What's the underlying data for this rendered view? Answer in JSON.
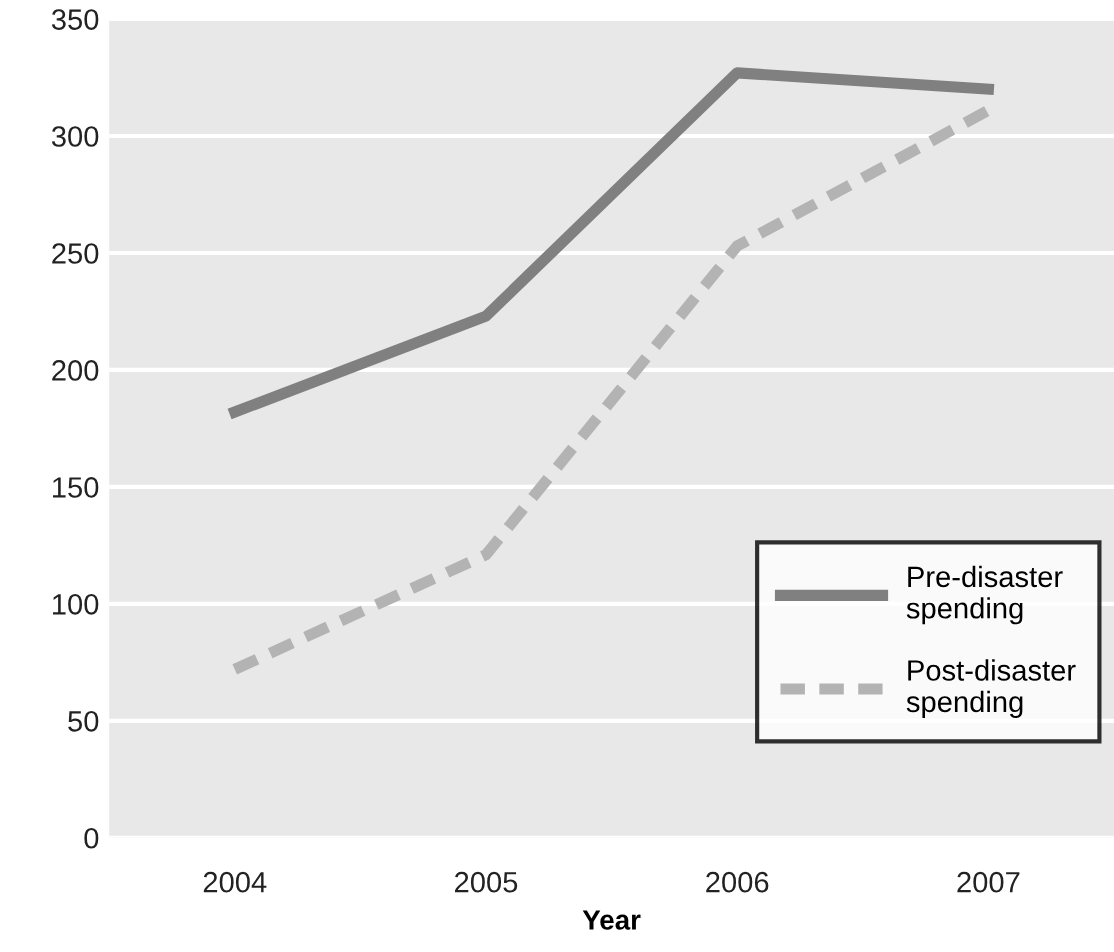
{
  "chart_data": {
    "type": "line",
    "xlabel": "Year",
    "categories": [
      "2004",
      "2005",
      "2006",
      "2007"
    ],
    "series": [
      {
        "name": "Pre-disaster spending",
        "color": "#808080",
        "line_style": "solid",
        "values": [
          182,
          223,
          327,
          320
        ]
      },
      {
        "name": "Post-disaster spending",
        "color": "#b3b3b3",
        "line_style": "dashed",
        "values": [
          72,
          121,
          253,
          311
        ]
      }
    ],
    "ylim": [
      0,
      350
    ],
    "yticks": [
      0,
      50,
      100,
      150,
      200,
      250,
      300,
      350
    ],
    "grid": "y",
    "legend": "bottom right",
    "marker": "none"
  }
}
